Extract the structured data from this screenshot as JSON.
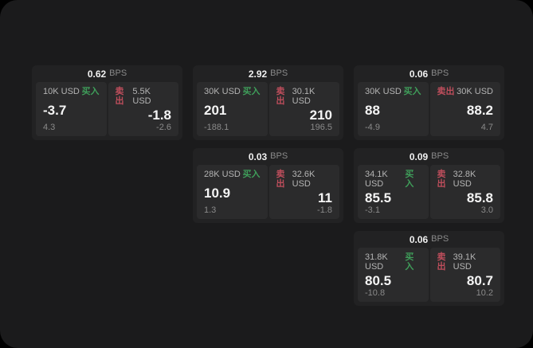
{
  "labels": {
    "bps_unit": "BPS",
    "buy": "买入",
    "sell": "卖出"
  },
  "colors": {
    "page_background": "#1b1b1c",
    "card_background": "#222223",
    "panel_background": "#2b2b2c",
    "buy_accent": "#3f9e5a",
    "sell_accent": "#bf4e5c",
    "primary_text": "#f5f5f5",
    "muted_text": "#8a8a8a"
  },
  "cards": [
    {
      "bps": "0.62",
      "buy": {
        "amount": "10K USD",
        "value": "-3.7",
        "sub": "4.3"
      },
      "sell": {
        "amount": "5.5K USD",
        "value": "-1.8",
        "sub": "-2.6"
      }
    },
    {
      "bps": "2.92",
      "buy": {
        "amount": "30K USD",
        "value": "201",
        "sub": "-188.1"
      },
      "sell": {
        "amount": "30.1K USD",
        "value": "210",
        "sub": "196.5"
      }
    },
    {
      "bps": "0.06",
      "buy": {
        "amount": "30K USD",
        "value": "88",
        "sub": "-4.9"
      },
      "sell": {
        "amount": "30K USD",
        "value": "88.2",
        "sub": "4.7"
      }
    },
    {
      "bps": "0.03",
      "buy": {
        "amount": "28K USD",
        "value": "10.9",
        "sub": "1.3"
      },
      "sell": {
        "amount": "32.6K USD",
        "value": "11",
        "sub": "-1.8"
      }
    },
    {
      "bps": "0.09",
      "buy": {
        "amount": "34.1K USD",
        "value": "85.5",
        "sub": "-3.1"
      },
      "sell": {
        "amount": "32.8K USD",
        "value": "85.8",
        "sub": "3.0"
      }
    },
    {
      "bps": "0.06",
      "buy": {
        "amount": "31.8K USD",
        "value": "80.5",
        "sub": "-10.8"
      },
      "sell": {
        "amount": "39.1K USD",
        "value": "80.7",
        "sub": "10.2"
      }
    }
  ]
}
